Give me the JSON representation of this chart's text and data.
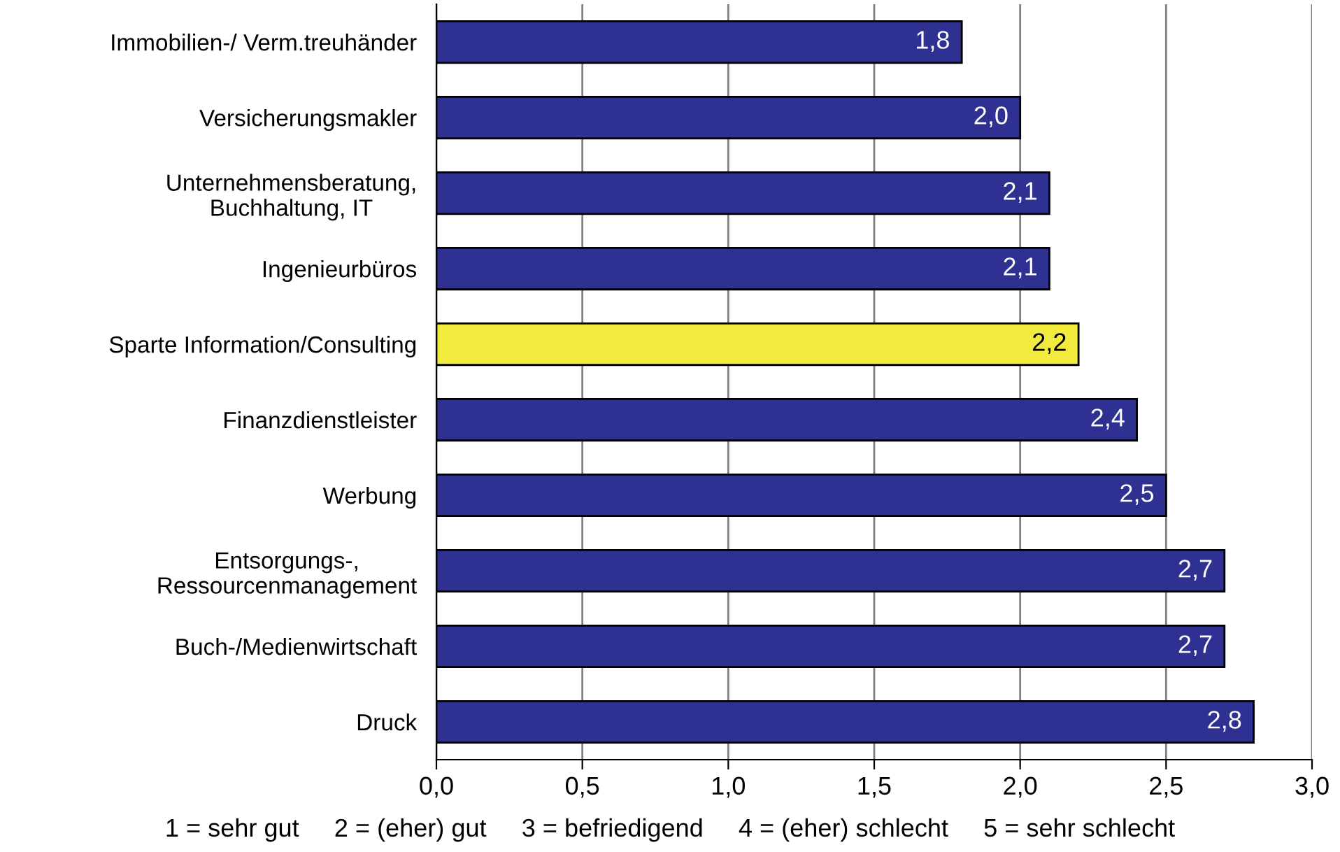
{
  "chart_data": {
    "type": "bar",
    "orientation": "horizontal",
    "categories": [
      "Immobilien-/ Verm.treuhänder",
      "Versicherungsmakler",
      "Unternehmensberatung,\nBuchhaltung, IT",
      "Ingenieurbüros",
      "Sparte Information/Consulting",
      "Finanzdienstleister",
      "Werbung",
      "Entsorgungs-,\nRessourcenmanagement",
      "Buch-/Medienwirtschaft",
      "Druck"
    ],
    "values": [
      1.8,
      2.0,
      2.1,
      2.1,
      2.2,
      2.4,
      2.5,
      2.7,
      2.7,
      2.8
    ],
    "colors": [
      "#2e3192",
      "#2e3192",
      "#2e3192",
      "#2e3192",
      "#f0eb3c",
      "#2e3192",
      "#2e3192",
      "#2e3192",
      "#2e3192",
      "#2e3192"
    ],
    "value_labels": [
      "1,8",
      "2,0",
      "2,1",
      "2,1",
      "2,2",
      "2,4",
      "2,5",
      "2,7",
      "2,7",
      "2,8"
    ],
    "xlim": [
      0,
      3
    ],
    "xticks": [
      {
        "value": 0,
        "label": "0,0"
      },
      {
        "value": 0.5,
        "label": "0,5"
      },
      {
        "value": 1,
        "label": "1,0"
      },
      {
        "value": 1.5,
        "label": "1,5"
      },
      {
        "value": 2,
        "label": "2,0"
      },
      {
        "value": 2.5,
        "label": "2,5"
      },
      {
        "value": 3,
        "label": "3,0"
      }
    ],
    "grid": "x",
    "annotations": [
      "1 = sehr gut     2 = (eher) gut     3 = befriedigend     4 = (eher) schlecht     5 = sehr schlecht"
    ]
  }
}
